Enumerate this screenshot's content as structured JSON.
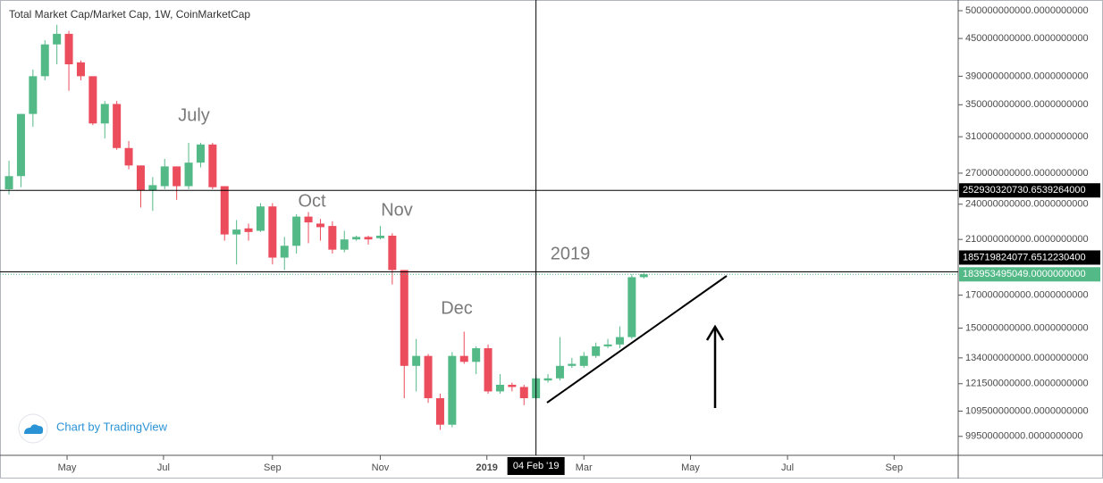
{
  "chart_data": {
    "type": "candlestick",
    "title": "Total Market Cap/Market Cap, 1W, CoinMarketCap",
    "log_y": true,
    "grid": false,
    "up_color": "#53b987",
    "down_color": "#eb4d5c",
    "open": [
      254000000000.0,
      267000000000.0,
      338000000000.0,
      390000000000.0,
      440000000000.0,
      458000000000.0,
      411000000000.0,
      390000000000.0,
      326000000000.0,
      351000000000.0,
      297000000000.0,
      278000000000.0,
      253000000000.0,
      257000000000.0,
      277000000000.0,
      257000000000.0,
      281000000000.0,
      301000000000.0,
      257000000000.0,
      214000000000.0,
      219000000000.0,
      217000000000.0,
      238000000000.0,
      196000000000.0,
      205000000000.0,
      229000000000.0,
      223000000000.0,
      221000000000.0,
      202000000000.0,
      210000000000.0,
      212000000000.0,
      211000000000.0,
      213000000000.0,
      187000000000.0,
      130000000000.0,
      135000000000.0,
      115000000000.0,
      104000000000.0,
      135000000000.0,
      132000000000.0,
      139000000000.0,
      118000000000.0,
      121000000000.0,
      120000000000.0,
      115000000000.0,
      123000000000.0,
      124000000000.0,
      130000000000.0,
      130000000000.0,
      135000000000.0,
      140000000000.0,
      141000000000.0,
      145000000000.0,
      182000000000.0
    ],
    "high": [
      283000000000.0,
      338000000000.0,
      400000000000.0,
      447000000000.0,
      474000000000.0,
      463000000000.0,
      414000000000.0,
      390000000000.0,
      355000000000.0,
      355000000000.0,
      305000000000.0,
      278000000000.0,
      266000000000.0,
      285000000000.0,
      277000000000.0,
      303000000000.0,
      303000000000.0,
      303000000000.0,
      257000000000.0,
      226000000000.0,
      223000000000.0,
      241000000000.0,
      241000000000.0,
      212000000000.0,
      231000000000.0,
      233000000000.0,
      227000000000.0,
      225000000000.0,
      217000000000.0,
      213000000000.0,
      213000000000.0,
      221000000000.0,
      215000000000.0,
      187000000000.0,
      144000000000.0,
      136000000000.0,
      117000000000.0,
      137000000000.0,
      148000000000.0,
      140000000000.0,
      141000000000.0,
      126000000000.0,
      122000000000.0,
      121000000000.0,
      126000000000.0,
      126000000000.0,
      145000000000.0,
      134000000000.0,
      137000000000.0,
      142000000000.0,
      144000000000.0,
      151000000000.0,
      184000000000.0,
      185000000000.0
    ],
    "low": [
      249000000000.0,
      256000000000.0,
      322000000000.0,
      384000000000.0,
      408000000000.0,
      369000000000.0,
      384000000000.0,
      324000000000.0,
      308000000000.0,
      295000000000.0,
      274000000000.0,
      237000000000.0,
      234000000000.0,
      254000000000.0,
      244000000000.0,
      254000000000.0,
      276000000000.0,
      254000000000.0,
      209000000000.0,
      191000000000.0,
      209000000000.0,
      216000000000.0,
      191000000000.0,
      187000000000.0,
      199000000000.0,
      207000000000.0,
      209000000000.0,
      199000000000.0,
      200000000000.0,
      209000000000.0,
      206000000000.0,
      210000000000.0,
      177000000000.0,
      115000000000.0,
      118000000000.0,
      113000000000.0,
      102000000000.0,
      103000000000.0,
      131000000000.0,
      126000000000.0,
      117000000000.0,
      117000000000.0,
      118000000000.0,
      112000000000.0,
      114000000000.0,
      122000000000.0,
      123000000000.0,
      129000000000.0,
      129000000000.0,
      134000000000.0,
      139000000000.0,
      139000000000.0,
      144000000000.0,
      181000000000.0
    ],
    "close": [
      267000000000.0,
      338000000000.0,
      390000000000.0,
      440000000000.0,
      458000000000.0,
      408000000000.0,
      390000000000.0,
      326000000000.0,
      351000000000.0,
      297000000000.0,
      278000000000.0,
      253000000000.0,
      258000000000.0,
      277000000000.0,
      257000000000.0,
      281000000000.0,
      301000000000.0,
      256000000000.0,
      214000000000.0,
      218000000000.0,
      216000000000.0,
      238000000000.0,
      196000000000.0,
      205000000000.0,
      229000000000.0,
      224000000000.0,
      220000000000.0,
      202000000000.0,
      210000000000.0,
      212000000000.0,
      210000000000.0,
      213000000000.0,
      187000000000.0,
      130000000000.0,
      135000000000.0,
      115000000000.0,
      104000000000.0,
      135000000000.0,
      132000000000.0,
      139000000000.0,
      118000000000.0,
      121000000000.0,
      120000000000.0,
      115000000000.0,
      124000000000.0,
      124000000000.0,
      130000000000.0,
      131000000000.0,
      135000000000.0,
      140000000000.0,
      141000000000.0,
      145000000000.0,
      182000000000.0,
      184000000000.0
    ],
    "xlim": [
      -0.75,
      79.25
    ],
    "xticks": [
      {
        "value": 4.85,
        "label": "May"
      },
      {
        "value": 12.9,
        "label": "Jul"
      },
      {
        "value": 22.0,
        "label": "Sep"
      },
      {
        "value": 31.0,
        "label": "Nov"
      },
      {
        "value": 39.9,
        "label": "2019"
      },
      {
        "value": 48.0,
        "label": "Mar"
      },
      {
        "value": 56.9,
        "label": "May"
      },
      {
        "value": 65.0,
        "label": "Jul"
      },
      {
        "value": 73.9,
        "label": "Sep"
      }
    ],
    "ylim": [
      92600000000.0,
      520700000000.0
    ],
    "yticks": [
      {
        "value": 500000000000,
        "label": "500000000000.0000000000"
      },
      {
        "value": 450000000000,
        "label": "450000000000.0000000000"
      },
      {
        "value": 390000000000,
        "label": "390000000000.0000000000"
      },
      {
        "value": 350000000000,
        "label": "350000000000.0000000000"
      },
      {
        "value": 310000000000,
        "label": "310000000000.0000000000"
      },
      {
        "value": 270000000000,
        "label": "270000000000.0000000000"
      },
      {
        "value": 240000000000,
        "label": "240000000000.0000000000"
      },
      {
        "value": 210000000000,
        "label": "210000000000.0000000000"
      },
      {
        "value": 170000000000,
        "label": "170000000000.0000000000"
      },
      {
        "value": 150000000000,
        "label": "150000000000.0000000000"
      },
      {
        "value": 134000000000,
        "label": "134000000000.0000000000"
      },
      {
        "value": 121500000000,
        "label": "121500000000.0000000000"
      },
      {
        "value": 109500000000,
        "label": "109500000000.0000000000"
      },
      {
        "value": 99500000000,
        "label": "99500000000.0000000000"
      }
    ],
    "annotations": [
      "July",
      "Oct",
      "Nov",
      "Dec",
      "2019"
    ],
    "crosshair": {
      "x": 44,
      "x_label": "04 Feb '19",
      "y": 252930320730.6539,
      "y_label": "252930320730.6539264000"
    },
    "price_line": {
      "value": 185719824077.6512,
      "label": "185719824077.6512230400"
    },
    "last_price": {
      "value": 183953495049,
      "label": "183953495049.0000000000"
    },
    "branding": "Chart by TradingView"
  }
}
